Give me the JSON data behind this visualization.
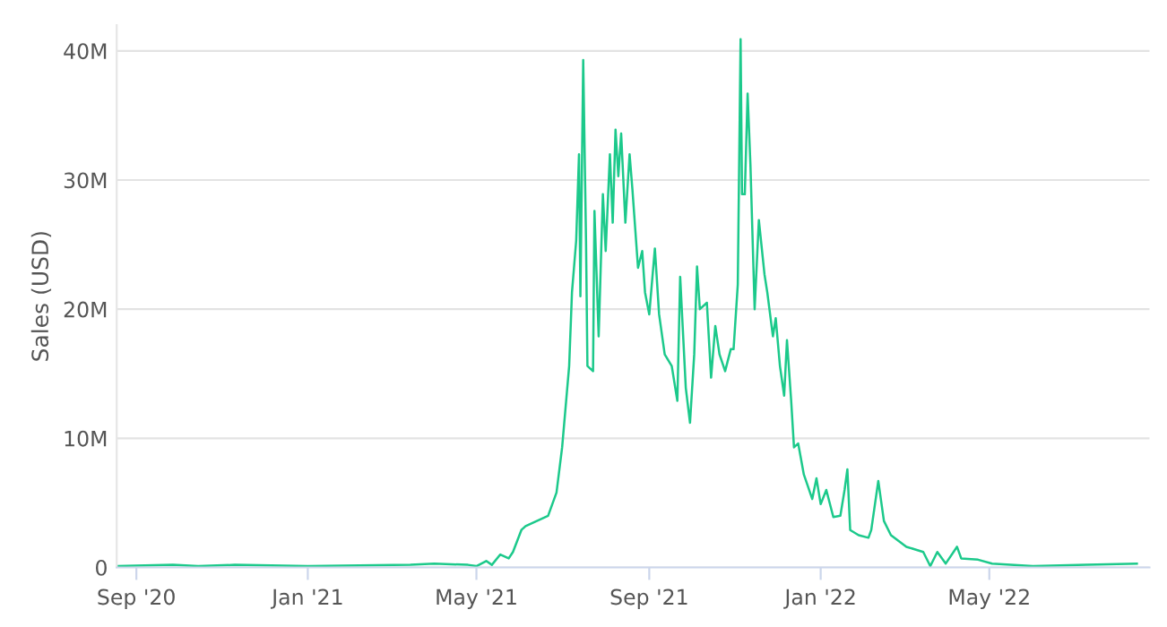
{
  "chart_data": {
    "type": "line",
    "ylabel": "Sales (USD)",
    "x": [
      "2020-08-18",
      "2020-09-27",
      "2020-10-15",
      "2020-11-10",
      "2021-01-01",
      "2021-03-15",
      "2021-04-01",
      "2021-04-25",
      "2021-05-01",
      "2021-05-08",
      "2021-05-12",
      "2021-05-18",
      "2021-05-24",
      "2021-05-27",
      "2021-06-02",
      "2021-06-05",
      "2021-06-21",
      "2021-06-27",
      "2021-07-01",
      "2021-07-06",
      "2021-07-08",
      "2021-07-11",
      "2021-07-13",
      "2021-07-14",
      "2021-07-16",
      "2021-07-18",
      "2021-07-19",
      "2021-07-23",
      "2021-07-24",
      "2021-07-27",
      "2021-07-30",
      "2021-08-01",
      "2021-08-04",
      "2021-08-06",
      "2021-08-08",
      "2021-08-10",
      "2021-08-12",
      "2021-08-15",
      "2021-08-18",
      "2021-08-20",
      "2021-08-24",
      "2021-08-27",
      "2021-08-29",
      "2021-09-01",
      "2021-09-05",
      "2021-09-08",
      "2021-09-12",
      "2021-09-17",
      "2021-09-21",
      "2021-09-23",
      "2021-09-27",
      "2021-09-30",
      "2021-10-03",
      "2021-10-05",
      "2021-10-07",
      "2021-10-12",
      "2021-10-15",
      "2021-10-18",
      "2021-10-21",
      "2021-10-25",
      "2021-10-29",
      "2021-10-31",
      "2021-11-03",
      "2021-11-05",
      "2021-11-06",
      "2021-11-08",
      "2021-11-10",
      "2021-11-12",
      "2021-11-15",
      "2021-11-18",
      "2021-11-22",
      "2021-11-24",
      "2021-11-28",
      "2021-11-30",
      "2021-12-03",
      "2021-12-06",
      "2021-12-08",
      "2021-12-11",
      "2021-12-13",
      "2021-12-16",
      "2021-12-20",
      "2021-12-26",
      "2021-12-29",
      "2022-01-01",
      "2022-01-05",
      "2022-01-10",
      "2022-01-15",
      "2022-01-18",
      "2022-01-20",
      "2022-01-22",
      "2022-01-28",
      "2022-02-04",
      "2022-02-06",
      "2022-02-11",
      "2022-02-15",
      "2022-02-20",
      "2022-03-03",
      "2022-03-15",
      "2022-03-20",
      "2022-03-25",
      "2022-03-31",
      "2022-04-08",
      "2022-04-11",
      "2022-04-23",
      "2022-05-03",
      "2022-06-01",
      "2022-07-09",
      "2022-08-14"
    ],
    "series": [
      {
        "color": "#1cc98b",
        "values": [
          0.1,
          0.2,
          0.1,
          0.2,
          0.1,
          0.2,
          0.3,
          0.2,
          0.1,
          0.5,
          0.2,
          1.0,
          0.7,
          1.2,
          2.9,
          3.2,
          4.0,
          5.8,
          9.3,
          15.6,
          21.3,
          25.3,
          32,
          21,
          39.3,
          25.3,
          15.6,
          15.2,
          27.6,
          17.9,
          28.9,
          24.5,
          32,
          26.7,
          33.9,
          30.3,
          33.6,
          26.7,
          32,
          29.3,
          23.2,
          24.5,
          21.3,
          19.6,
          24.7,
          19.6,
          16.5,
          15.6,
          12.9,
          22.5,
          13.9,
          11.2,
          16.5,
          23.3,
          20,
          20.5,
          14.7,
          18.7,
          16.5,
          15.2,
          16.9,
          16.9,
          21.9,
          40.9,
          28.9,
          28.9,
          36.7,
          31.2,
          20,
          26.9,
          22.7,
          21.3,
          17.9,
          19.3,
          15.6,
          13.3,
          17.6,
          12.9,
          9.3,
          9.6,
          7.2,
          5.3,
          6.9,
          4.9,
          6.0,
          3.9,
          4.0,
          6,
          7.6,
          2.9,
          2.5,
          2.3,
          2.9,
          6.7,
          3.6,
          2.5,
          1.6,
          1.2,
          0.1,
          1.2,
          0.3,
          1.6,
          0.7,
          0.6,
          0.3,
          0.1,
          0.2,
          0.3
        ]
      }
    ],
    "xlim": [
      "2020-08-18",
      "2022-08-23"
    ],
    "xticks": [
      {
        "value": "2020-09-01",
        "label": "Sep '20"
      },
      {
        "value": "2021-01-01",
        "label": "Jan '21"
      },
      {
        "value": "2021-05-01",
        "label": "May '21"
      },
      {
        "value": "2021-09-01",
        "label": "Sep '21"
      },
      {
        "value": "2022-01-01",
        "label": "Jan '22"
      },
      {
        "value": "2022-05-01",
        "label": "May '22"
      }
    ],
    "ylim": [
      0,
      42
    ],
    "yticks": [
      0,
      {
        "value": 10,
        "label": "10M"
      },
      {
        "value": 20,
        "label": "20M"
      },
      {
        "value": 30,
        "label": "30M"
      },
      {
        "value": 40,
        "label": "40M"
      }
    ],
    "grid": "y"
  }
}
